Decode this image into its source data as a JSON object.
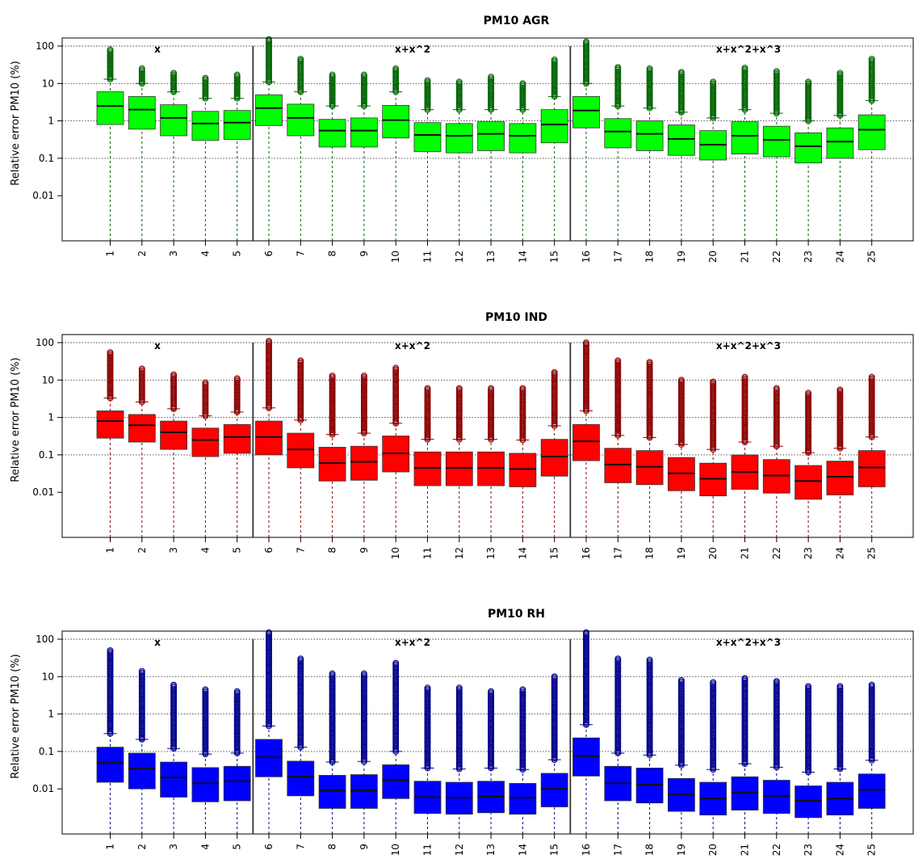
{
  "chart_data": [
    {
      "type": "box",
      "title": "PM10 AGR",
      "ylabel": "Relative error PM10 (%)",
      "y_scale": "log",
      "ylim": [
        0.001,
        150
      ],
      "y_ticks": [
        {
          "value": 100,
          "label": "100"
        },
        {
          "value": 10,
          "label": "10"
        },
        {
          "value": 1,
          "label": "1"
        },
        {
          "value": 0.1,
          "label": "0.1"
        },
        {
          "value": 0.01,
          "label": "0.01"
        }
      ],
      "grid_y": [
        100,
        10,
        1,
        0.1
      ],
      "categories": [
        "1",
        "2",
        "3",
        "4",
        "5",
        "6",
        "7",
        "8",
        "9",
        "10",
        "11",
        "12",
        "13",
        "14",
        "15",
        "16",
        "17",
        "18",
        "19",
        "20",
        "21",
        "22",
        "23",
        "24",
        "25"
      ],
      "groups": [
        {
          "label": "x",
          "from": 1,
          "to": 5
        },
        {
          "label": "x+x^2",
          "from": 6,
          "to": 15
        },
        {
          "label": "x+x^2+x^3",
          "from": 16,
          "to": 25
        }
      ],
      "colors": {
        "box": "#00ff00",
        "outlier": "#006400"
      },
      "boxes": [
        {
          "q1": 0.8,
          "median": 2.5,
          "q3": 6.0,
          "whisker_high": 13,
          "outlier_max": 80
        },
        {
          "q1": 0.6,
          "median": 2.0,
          "q3": 4.5,
          "whisker_high": 10,
          "outlier_max": 25
        },
        {
          "q1": 0.4,
          "median": 1.2,
          "q3": 2.7,
          "whisker_high": 6,
          "outlier_max": 19
        },
        {
          "q1": 0.3,
          "median": 0.85,
          "q3": 1.8,
          "whisker_high": 4,
          "outlier_max": 14
        },
        {
          "q1": 0.32,
          "median": 0.9,
          "q3": 1.9,
          "whisker_high": 4,
          "outlier_max": 17
        },
        {
          "q1": 0.75,
          "median": 2.2,
          "q3": 5.0,
          "whisker_high": 11,
          "outlier_max": 150
        },
        {
          "q1": 0.4,
          "median": 1.2,
          "q3": 2.8,
          "whisker_high": 6,
          "outlier_max": 45
        },
        {
          "q1": 0.2,
          "median": 0.55,
          "q3": 1.1,
          "whisker_high": 2.5,
          "outlier_max": 17
        },
        {
          "q1": 0.2,
          "median": 0.55,
          "q3": 1.2,
          "whisker_high": 2.5,
          "outlier_max": 17
        },
        {
          "q1": 0.35,
          "median": 1.05,
          "q3": 2.6,
          "whisker_high": 6,
          "outlier_max": 25
        },
        {
          "q1": 0.15,
          "median": 0.42,
          "q3": 0.9,
          "whisker_high": 2,
          "outlier_max": 12
        },
        {
          "q1": 0.14,
          "median": 0.4,
          "q3": 0.85,
          "whisker_high": 2,
          "outlier_max": 11
        },
        {
          "q1": 0.16,
          "median": 0.45,
          "q3": 0.95,
          "whisker_high": 2,
          "outlier_max": 15
        },
        {
          "q1": 0.14,
          "median": 0.4,
          "q3": 0.85,
          "whisker_high": 2,
          "outlier_max": 10
        },
        {
          "q1": 0.26,
          "median": 0.8,
          "q3": 2.0,
          "whisker_high": 4.5,
          "outlier_max": 43
        },
        {
          "q1": 0.65,
          "median": 1.9,
          "q3": 4.5,
          "whisker_high": 10,
          "outlier_max": 130
        },
        {
          "q1": 0.19,
          "median": 0.52,
          "q3": 1.15,
          "whisker_high": 2.5,
          "outlier_max": 27
        },
        {
          "q1": 0.16,
          "median": 0.45,
          "q3": 1.0,
          "whisker_high": 2.2,
          "outlier_max": 25
        },
        {
          "q1": 0.12,
          "median": 0.33,
          "q3": 0.78,
          "whisker_high": 1.7,
          "outlier_max": 20
        },
        {
          "q1": 0.09,
          "median": 0.23,
          "q3": 0.55,
          "whisker_high": 1.2,
          "outlier_max": 11
        },
        {
          "q1": 0.13,
          "median": 0.4,
          "q3": 0.95,
          "whisker_high": 2,
          "outlier_max": 26
        },
        {
          "q1": 0.11,
          "median": 0.31,
          "q3": 0.72,
          "whisker_high": 1.6,
          "outlier_max": 21
        },
        {
          "q1": 0.075,
          "median": 0.21,
          "q3": 0.48,
          "whisker_high": 1.0,
          "outlier_max": 11
        },
        {
          "q1": 0.1,
          "median": 0.28,
          "q3": 0.65,
          "whisker_high": 1.4,
          "outlier_max": 19
        },
        {
          "q1": 0.17,
          "median": 0.58,
          "q3": 1.45,
          "whisker_high": 3.5,
          "outlier_max": 45
        }
      ]
    },
    {
      "type": "box",
      "title": "PM10 IND",
      "ylabel": "Relative error PM10 (%)",
      "y_scale": "log",
      "ylim": [
        0.001,
        150
      ],
      "y_ticks": [
        {
          "value": 100,
          "label": "100"
        },
        {
          "value": 10,
          "label": "10"
        },
        {
          "value": 1,
          "label": "1"
        },
        {
          "value": 0.1,
          "label": "0.1"
        },
        {
          "value": 0.01,
          "label": "0.01"
        }
      ],
      "grid_y": [
        100,
        10,
        1,
        0.1
      ],
      "categories": [
        "1",
        "2",
        "3",
        "4",
        "5",
        "6",
        "7",
        "8",
        "9",
        "10",
        "11",
        "12",
        "13",
        "14",
        "15",
        "16",
        "17",
        "18",
        "19",
        "20",
        "21",
        "22",
        "23",
        "24",
        "25"
      ],
      "groups": [
        {
          "label": "x",
          "from": 1,
          "to": 5
        },
        {
          "label": "x+x^2",
          "from": 6,
          "to": 15
        },
        {
          "label": "x+x^2+x^3",
          "from": 16,
          "to": 25
        }
      ],
      "colors": {
        "box": "#ff0000",
        "outlier": "#8b0000"
      },
      "boxes": [
        {
          "q1": 0.28,
          "median": 0.8,
          "q3": 1.5,
          "whisker_high": 3.3,
          "outlier_max": 55
        },
        {
          "q1": 0.22,
          "median": 0.62,
          "q3": 1.2,
          "whisker_high": 2.6,
          "outlier_max": 20
        },
        {
          "q1": 0.14,
          "median": 0.4,
          "q3": 0.8,
          "whisker_high": 1.7,
          "outlier_max": 14
        },
        {
          "q1": 0.09,
          "median": 0.25,
          "q3": 0.52,
          "whisker_high": 1.1,
          "outlier_max": 8.5
        },
        {
          "q1": 0.11,
          "median": 0.3,
          "q3": 0.65,
          "whisker_high": 1.4,
          "outlier_max": 11
        },
        {
          "q1": 0.1,
          "median": 0.3,
          "q3": 0.8,
          "whisker_high": 1.8,
          "outlier_max": 110
        },
        {
          "q1": 0.045,
          "median": 0.14,
          "q3": 0.38,
          "whisker_high": 0.85,
          "outlier_max": 33
        },
        {
          "q1": 0.02,
          "median": 0.06,
          "q3": 0.16,
          "whisker_high": 0.35,
          "outlier_max": 13
        },
        {
          "q1": 0.021,
          "median": 0.065,
          "q3": 0.17,
          "whisker_high": 0.38,
          "outlier_max": 13
        },
        {
          "q1": 0.035,
          "median": 0.11,
          "q3": 0.32,
          "whisker_high": 0.7,
          "outlier_max": 21
        },
        {
          "q1": 0.015,
          "median": 0.045,
          "q3": 0.12,
          "whisker_high": 0.26,
          "outlier_max": 6
        },
        {
          "q1": 0.015,
          "median": 0.045,
          "q3": 0.12,
          "whisker_high": 0.26,
          "outlier_max": 6
        },
        {
          "q1": 0.015,
          "median": 0.045,
          "q3": 0.12,
          "whisker_high": 0.26,
          "outlier_max": 6
        },
        {
          "q1": 0.014,
          "median": 0.042,
          "q3": 0.11,
          "whisker_high": 0.25,
          "outlier_max": 6
        },
        {
          "q1": 0.027,
          "median": 0.09,
          "q3": 0.26,
          "whisker_high": 0.6,
          "outlier_max": 16
        },
        {
          "q1": 0.07,
          "median": 0.23,
          "q3": 0.65,
          "whisker_high": 1.5,
          "outlier_max": 100
        },
        {
          "q1": 0.018,
          "median": 0.055,
          "q3": 0.15,
          "whisker_high": 0.33,
          "outlier_max": 33
        },
        {
          "q1": 0.016,
          "median": 0.048,
          "q3": 0.13,
          "whisker_high": 0.29,
          "outlier_max": 30
        },
        {
          "q1": 0.011,
          "median": 0.032,
          "q3": 0.085,
          "whisker_high": 0.19,
          "outlier_max": 10
        },
        {
          "q1": 0.008,
          "median": 0.023,
          "q3": 0.06,
          "whisker_high": 0.14,
          "outlier_max": 9
        },
        {
          "q1": 0.012,
          "median": 0.035,
          "q3": 0.1,
          "whisker_high": 0.22,
          "outlier_max": 12
        },
        {
          "q1": 0.0095,
          "median": 0.028,
          "q3": 0.075,
          "whisker_high": 0.17,
          "outlier_max": 6
        },
        {
          "q1": 0.0065,
          "median": 0.02,
          "q3": 0.052,
          "whisker_high": 0.115,
          "outlier_max": 4.5
        },
        {
          "q1": 0.0085,
          "median": 0.026,
          "q3": 0.068,
          "whisker_high": 0.15,
          "outlier_max": 5.5
        },
        {
          "q1": 0.014,
          "median": 0.046,
          "q3": 0.13,
          "whisker_high": 0.3,
          "outlier_max": 12
        }
      ]
    },
    {
      "type": "box",
      "title": "PM10 RH",
      "ylabel": "Relative error PM10 (%)",
      "y_scale": "log",
      "ylim": [
        0.001,
        150
      ],
      "y_ticks": [
        {
          "value": 100,
          "label": "100"
        },
        {
          "value": 10,
          "label": "10"
        },
        {
          "value": 1,
          "label": "1"
        },
        {
          "value": 0.1,
          "label": "0.1"
        },
        {
          "value": 0.01,
          "label": "0.01"
        }
      ],
      "grid_y": [
        100,
        10,
        1,
        0.1
      ],
      "categories": [
        "1",
        "2",
        "3",
        "4",
        "5",
        "6",
        "7",
        "8",
        "9",
        "10",
        "11",
        "12",
        "13",
        "14",
        "15",
        "16",
        "17",
        "18",
        "19",
        "20",
        "21",
        "22",
        "23",
        "24",
        "25"
      ],
      "groups": [
        {
          "label": "x",
          "from": 1,
          "to": 5
        },
        {
          "label": "x+x^2",
          "from": 6,
          "to": 15
        },
        {
          "label": "x+x^2+x^3",
          "from": 16,
          "to": 25
        }
      ],
      "colors": {
        "box": "#0000ff",
        "outlier": "#00008b"
      },
      "boxes": [
        {
          "q1": 0.015,
          "median": 0.05,
          "q3": 0.13,
          "whisker_high": 0.3,
          "outlier_max": 50
        },
        {
          "q1": 0.01,
          "median": 0.035,
          "q3": 0.09,
          "whisker_high": 0.21,
          "outlier_max": 14
        },
        {
          "q1": 0.006,
          "median": 0.02,
          "q3": 0.052,
          "whisker_high": 0.12,
          "outlier_max": 6
        },
        {
          "q1": 0.0045,
          "median": 0.014,
          "q3": 0.037,
          "whisker_high": 0.085,
          "outlier_max": 4.5
        },
        {
          "q1": 0.0048,
          "median": 0.016,
          "q3": 0.04,
          "whisker_high": 0.09,
          "outlier_max": 4
        },
        {
          "q1": 0.021,
          "median": 0.07,
          "q3": 0.21,
          "whisker_high": 0.48,
          "outlier_max": 150
        },
        {
          "q1": 0.0065,
          "median": 0.021,
          "q3": 0.055,
          "whisker_high": 0.13,
          "outlier_max": 30
        },
        {
          "q1": 0.003,
          "median": 0.009,
          "q3": 0.023,
          "whisker_high": 0.052,
          "outlier_max": 12
        },
        {
          "q1": 0.003,
          "median": 0.009,
          "q3": 0.024,
          "whisker_high": 0.054,
          "outlier_max": 12
        },
        {
          "q1": 0.0055,
          "median": 0.017,
          "q3": 0.044,
          "whisker_high": 0.1,
          "outlier_max": 23
        },
        {
          "q1": 0.0022,
          "median": 0.006,
          "q3": 0.016,
          "whisker_high": 0.036,
          "outlier_max": 5
        },
        {
          "q1": 0.0021,
          "median": 0.0058,
          "q3": 0.015,
          "whisker_high": 0.034,
          "outlier_max": 5
        },
        {
          "q1": 0.0023,
          "median": 0.0062,
          "q3": 0.016,
          "whisker_high": 0.036,
          "outlier_max": 4
        },
        {
          "q1": 0.0021,
          "median": 0.0058,
          "q3": 0.014,
          "whisker_high": 0.033,
          "outlier_max": 4.5
        },
        {
          "q1": 0.0033,
          "median": 0.01,
          "q3": 0.026,
          "whisker_high": 0.06,
          "outlier_max": 10
        },
        {
          "q1": 0.022,
          "median": 0.075,
          "q3": 0.23,
          "whisker_high": 0.52,
          "outlier_max": 150
        },
        {
          "q1": 0.0048,
          "median": 0.014,
          "q3": 0.04,
          "whisker_high": 0.09,
          "outlier_max": 30
        },
        {
          "q1": 0.0042,
          "median": 0.013,
          "q3": 0.036,
          "whisker_high": 0.08,
          "outlier_max": 28
        },
        {
          "q1": 0.0025,
          "median": 0.007,
          "q3": 0.019,
          "whisker_high": 0.043,
          "outlier_max": 8
        },
        {
          "q1": 0.002,
          "median": 0.0055,
          "q3": 0.015,
          "whisker_high": 0.033,
          "outlier_max": 7
        },
        {
          "q1": 0.0027,
          "median": 0.008,
          "q3": 0.021,
          "whisker_high": 0.047,
          "outlier_max": 9
        },
        {
          "q1": 0.0022,
          "median": 0.0065,
          "q3": 0.017,
          "whisker_high": 0.038,
          "outlier_max": 7.5
        },
        {
          "q1": 0.0017,
          "median": 0.0048,
          "q3": 0.012,
          "whisker_high": 0.028,
          "outlier_max": 5.5
        },
        {
          "q1": 0.002,
          "median": 0.0055,
          "q3": 0.015,
          "whisker_high": 0.034,
          "outlier_max": 5.5
        },
        {
          "q1": 0.003,
          "median": 0.0095,
          "q3": 0.025,
          "whisker_high": 0.058,
          "outlier_max": 6
        }
      ]
    }
  ]
}
